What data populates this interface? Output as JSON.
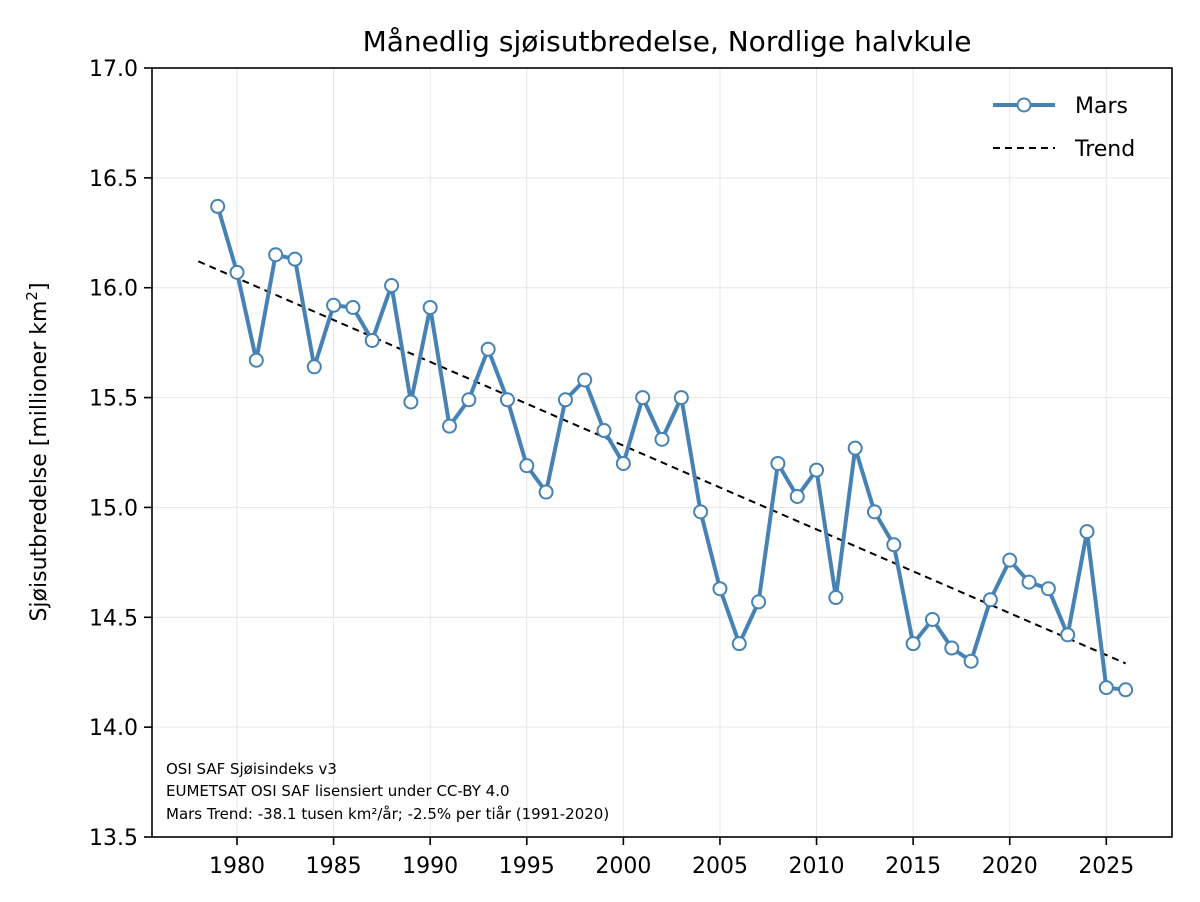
{
  "chart_data": {
    "type": "line",
    "title": "Månedlig sjøisutbredelse, Nordlige halvkule",
    "ylabel_main": "Sjøisutbredelse [millioner km",
    "ylabel_sup": "2",
    "ylabel_end": "]",
    "xlabel": "",
    "xlim": [
      1975.6,
      2028.4
    ],
    "ylim": [
      13.5,
      17.0
    ],
    "xticks": [
      1980,
      1985,
      1990,
      1995,
      2000,
      2005,
      2010,
      2015,
      2020,
      2025
    ],
    "yticks": [
      13.5,
      14.0,
      14.5,
      15.0,
      15.5,
      16.0,
      16.5,
      17.0
    ],
    "ytick_labels": [
      "13.5",
      "14.0",
      "14.5",
      "15.0",
      "15.5",
      "16.0",
      "16.5",
      "17.0"
    ],
    "grid": true,
    "legend_position": "top-right",
    "series": [
      {
        "name": "Mars",
        "color": "#4682b4",
        "style": "line-with-circle-markers",
        "x": [
          1979,
          1980,
          1981,
          1982,
          1983,
          1984,
          1985,
          1986,
          1987,
          1988,
          1989,
          1990,
          1991,
          1992,
          1993,
          1994,
          1995,
          1996,
          1997,
          1998,
          1999,
          2000,
          2001,
          2002,
          2003,
          2004,
          2005,
          2006,
          2007,
          2008,
          2009,
          2010,
          2011,
          2012,
          2013,
          2014,
          2015,
          2016,
          2017,
          2018,
          2019,
          2020,
          2021,
          2022,
          2023,
          2024,
          2025,
          2026
        ],
        "y": [
          16.37,
          16.07,
          15.67,
          16.15,
          16.13,
          15.64,
          15.92,
          15.91,
          15.76,
          16.01,
          15.48,
          15.91,
          15.37,
          15.49,
          15.72,
          15.49,
          15.19,
          15.07,
          15.49,
          15.58,
          15.35,
          15.2,
          15.5,
          15.31,
          15.5,
          14.98,
          14.63,
          14.38,
          14.57,
          15.2,
          15.05,
          15.17,
          14.59,
          15.27,
          14.98,
          14.83,
          14.38,
          14.49,
          14.36,
          14.3,
          14.58,
          14.76,
          14.66,
          14.63,
          14.42,
          14.89,
          14.18,
          14.17
        ]
      },
      {
        "name": "Trend",
        "color": "#000000",
        "style": "dashed",
        "x": [
          1978,
          2026
        ],
        "y": [
          16.12,
          14.29
        ]
      }
    ],
    "annotations": [
      "OSI SAF Sjøisindeks v3",
      "EUMETSAT OSI SAF lisensiert under CC-BY 4.0",
      "Mars Trend: -38.1 tusen km²/år; -2.5% per tiår (1991-2020)"
    ]
  }
}
